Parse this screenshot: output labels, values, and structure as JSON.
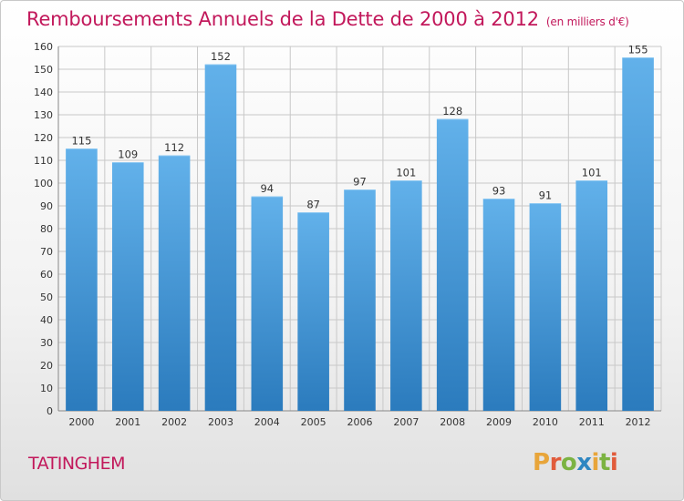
{
  "header": {
    "title": "Remboursements Annuels de la Dette de 2000 à 2012",
    "unit": "(en milliers d'€)"
  },
  "footer": {
    "commune": "TATINGHEM",
    "logo": "Proxiti"
  },
  "colors": {
    "title": "#c2185b",
    "bar_top": "#62b1ea",
    "bar_bottom": "#2b7bbd",
    "grid": "#c8c8c8",
    "logo_letters": [
      "#e8a53a",
      "#e15b3b",
      "#7cb342",
      "#2e86c1",
      "#e8a53a",
      "#7cb342",
      "#e15b3b"
    ]
  },
  "chart_data": {
    "type": "bar",
    "title": "Remboursements Annuels de la Dette de 2000 à 2012",
    "xlabel": "",
    "ylabel": "",
    "categories": [
      "2000",
      "2001",
      "2002",
      "2003",
      "2004",
      "2005",
      "2006",
      "2007",
      "2008",
      "2009",
      "2010",
      "2011",
      "2012"
    ],
    "values": [
      115,
      109,
      112,
      152,
      94,
      87,
      97,
      101,
      128,
      93,
      91,
      101,
      155
    ],
    "ylim": [
      0,
      160
    ],
    "yticks": [
      0,
      10,
      20,
      30,
      40,
      50,
      60,
      70,
      80,
      90,
      100,
      110,
      120,
      130,
      140,
      150,
      160
    ],
    "grid": true,
    "data_labels": true
  }
}
